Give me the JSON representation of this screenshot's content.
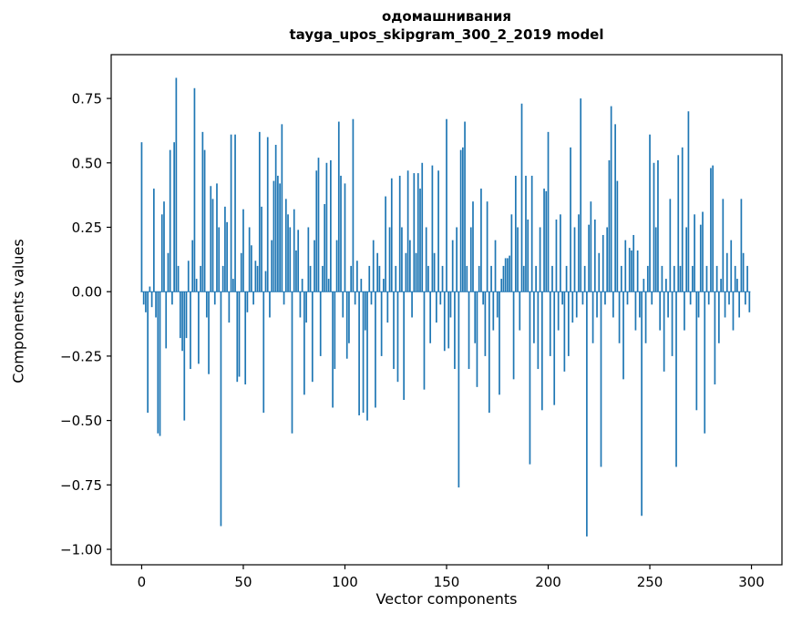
{
  "title": {
    "line1": "одомашнивания",
    "line2": "tayga_upos_skipgram_300_2_2019 model"
  },
  "chart_data": {
    "type": "bar",
    "title": "одомашнивания\ntayga_upos_skipgram_300_2_2019 model",
    "xlabel": "Vector components",
    "ylabel": "Components values",
    "xlim": [
      -15,
      315
    ],
    "ylim": [
      -1.06,
      0.92
    ],
    "x_tick_values": [
      0,
      50,
      100,
      150,
      200,
      250,
      300
    ],
    "x_tick_labels": [
      "0",
      "50",
      "100",
      "150",
      "200",
      "250",
      "300"
    ],
    "y_tick_values": [
      0.75,
      0.5,
      0.25,
      0,
      -0.25,
      -0.5,
      -0.75,
      -1.0
    ],
    "y_tick_labels": [
      "0.75",
      "0.50",
      "0.25",
      "0.00",
      "−0.25",
      "−0.50",
      "−0.75",
      "−1.00"
    ],
    "bar_color": "#1f77b4",
    "grid": false,
    "legend": "none",
    "values": [
      0.58,
      -0.05,
      -0.08,
      -0.47,
      0.02,
      -0.06,
      0.4,
      -0.1,
      -0.55,
      -0.56,
      0.3,
      0.35,
      -0.22,
      0.15,
      0.55,
      -0.05,
      0.58,
      0.83,
      0.1,
      -0.18,
      -0.23,
      -0.5,
      -0.18,
      0.12,
      -0.3,
      0.2,
      0.79,
      0.05,
      -0.28,
      0.1,
      0.62,
      0.55,
      -0.1,
      -0.32,
      0.41,
      0.36,
      -0.05,
      0.42,
      0.25,
      -0.91,
      0.1,
      0.33,
      0.27,
      -0.12,
      0.61,
      0.05,
      0.61,
      -0.35,
      -0.33,
      0.15,
      0.32,
      -0.36,
      -0.08,
      0.25,
      0.18,
      -0.05,
      0.12,
      0.1,
      0.62,
      0.33,
      -0.47,
      0.08,
      0.6,
      -0.1,
      0.2,
      0.43,
      0.57,
      0.45,
      0.42,
      0.65,
      -0.05,
      0.36,
      0.3,
      0.25,
      -0.55,
      0.32,
      0.16,
      0.24,
      -0.1,
      0.05,
      -0.4,
      -0.12,
      0.25,
      0.1,
      -0.35,
      0.2,
      0.47,
      0.52,
      -0.25,
      0.1,
      0.34,
      0.5,
      0.05,
      0.51,
      -0.45,
      -0.3,
      0.2,
      0.66,
      0.45,
      -0.1,
      0.42,
      -0.26,
      -0.2,
      0.1,
      0.67,
      -0.05,
      0.12,
      -0.48,
      0.05,
      -0.47,
      -0.15,
      -0.5,
      0.1,
      -0.05,
      0.2,
      -0.45,
      0.15,
      0.1,
      -0.25,
      0.05,
      0.37,
      -0.12,
      0.25,
      0.44,
      -0.3,
      0.1,
      -0.35,
      0.45,
      0.25,
      -0.42,
      0.15,
      0.47,
      0.2,
      -0.1,
      0.46,
      0.15,
      0.46,
      0.4,
      0.5,
      -0.38,
      0.25,
      0.1,
      -0.2,
      0.49,
      0.15,
      -0.12,
      0.47,
      -0.05,
      0.1,
      -0.23,
      0.67,
      -0.22,
      -0.1,
      0.2,
      -0.3,
      0.25,
      -0.76,
      0.55,
      0.56,
      0.66,
      0.1,
      -0.3,
      0.25,
      0.35,
      -0.2,
      -0.37,
      0.1,
      0.4,
      -0.05,
      -0.25,
      0.35,
      -0.47,
      0.1,
      -0.15,
      0.2,
      -0.1,
      -0.4,
      0.05,
      0.1,
      0.13,
      0.13,
      0.14,
      0.3,
      -0.34,
      0.45,
      0.25,
      -0.15,
      0.73,
      0.1,
      0.45,
      0.28,
      -0.67,
      0.45,
      -0.2,
      0.1,
      -0.3,
      0.25,
      -0.46,
      0.4,
      0.39,
      0.62,
      -0.25,
      0.1,
      -0.44,
      0.28,
      -0.15,
      0.3,
      -0.05,
      -0.31,
      0.1,
      -0.25,
      0.56,
      -0.12,
      0.25,
      -0.1,
      0.3,
      0.75,
      -0.05,
      0.1,
      -0.95,
      0.26,
      0.35,
      -0.2,
      0.28,
      -0.1,
      0.15,
      -0.68,
      0.22,
      -0.05,
      0.25,
      0.51,
      0.72,
      -0.1,
      0.65,
      0.43,
      -0.2,
      0.1,
      -0.34,
      0.2,
      -0.05,
      0.17,
      0.16,
      0.22,
      -0.15,
      0.16,
      -0.1,
      -0.87,
      0.05,
      -0.2,
      0.1,
      0.61,
      -0.05,
      0.5,
      0.25,
      0.51,
      -0.15,
      0.1,
      -0.31,
      0.05,
      -0.1,
      0.36,
      -0.25,
      0.1,
      -0.68,
      0.53,
      0.1,
      0.56,
      -0.15,
      0.25,
      0.7,
      -0.05,
      0.1,
      0.3,
      -0.46,
      -0.1,
      0.26,
      0.31,
      -0.55,
      0.1,
      -0.05,
      0.48,
      0.49,
      -0.36,
      0.1,
      -0.2,
      0.05,
      0.36,
      -0.1,
      0.15,
      -0.05,
      0.2,
      -0.15,
      0.1,
      0.05,
      -0.1,
      0.36,
      0.15,
      -0.05,
      0.1,
      -0.08
    ]
  }
}
